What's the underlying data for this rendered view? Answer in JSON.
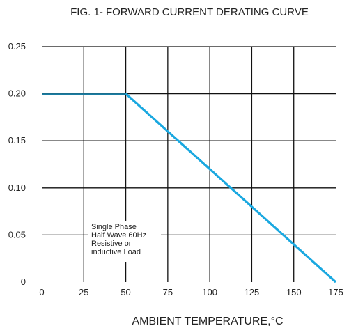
{
  "chart_data": {
    "type": "line",
    "title": "FIG. 1- FORWARD CURRENT DERATING CURVE",
    "xlabel": "AMBIENT TEMPERATURE,°C",
    "ylabel": "",
    "xlim": [
      0,
      175
    ],
    "ylim": [
      0,
      0.25
    ],
    "xticks": [
      "0",
      "25",
      "50",
      "75",
      "100",
      "125",
      "150",
      "175"
    ],
    "yticks": [
      "0",
      "0.05",
      "0.10",
      "0.15",
      "0.20",
      "0.25"
    ],
    "grid": true,
    "series": [
      {
        "color": "#1aa8e0",
        "x": [
          0,
          50,
          175
        ],
        "y": [
          0.2,
          0.2,
          0
        ]
      }
    ],
    "annotation": [
      "Single Phase",
      "Half Wave 60Hz",
      "Resistive or",
      "inductive Load"
    ]
  }
}
